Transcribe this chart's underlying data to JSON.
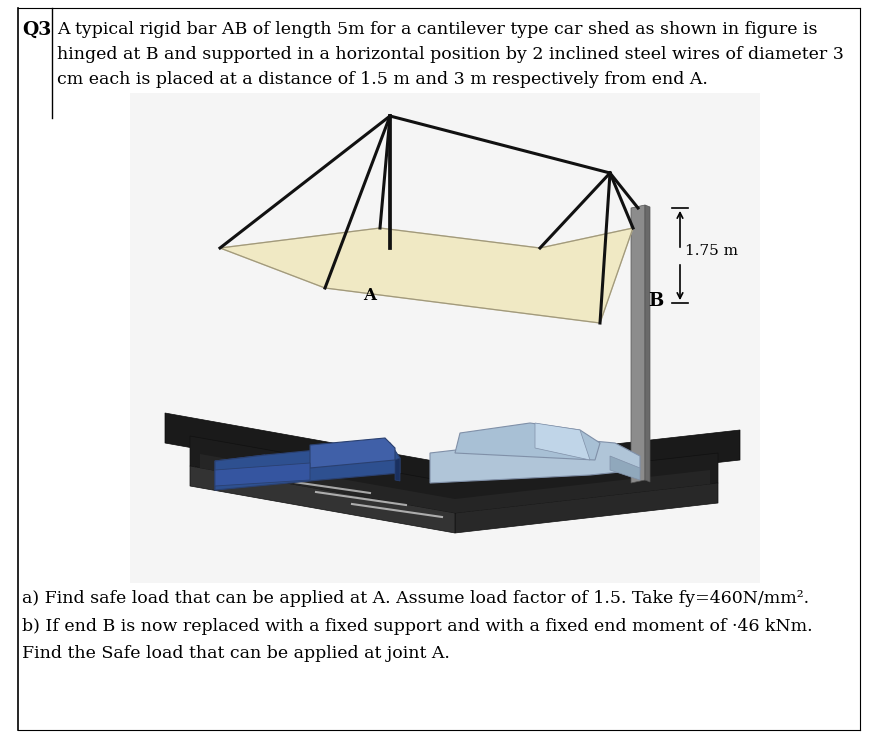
{
  "background_color": "#ffffff",
  "border_color": "#000000",
  "q_label": "Q3",
  "text_line1": "A typical rigid bar AB of length 5m for a cantilever type car shed as shown in figure is",
  "text_line2": "hinged at B and supported in a horizontal position by 2 inclined steel wires of diameter 3",
  "text_line3": "cm each is placed at a distance of 1.5 m and 3 m respectively from end A.",
  "answer_a": "a) Find safe load that can be applied at A. Assume load factor of 1.5. Take fy=460N/mm².",
  "answer_b": "b) If end B is now replaced with a fixed support and with a fixed end moment of ·46 kNm.",
  "answer_c": "Find the Safe load that can be applied at joint A.",
  "dim_label": "1.75 m",
  "label_A": "A",
  "label_B": "B",
  "font_size_main": 12.5,
  "font_size_q": 13.5,
  "text_color": "#000000",
  "fig_width": 8.73,
  "fig_height": 7.38,
  "photo_bg": "#f8f8f8",
  "pole_color": "#9a9a9a",
  "canopy_color": "#f0e8c0",
  "platform_color": "#222222",
  "truck_color": "#3a5ea0",
  "car_color": "#b8ccdd",
  "wire_color": "#111111"
}
